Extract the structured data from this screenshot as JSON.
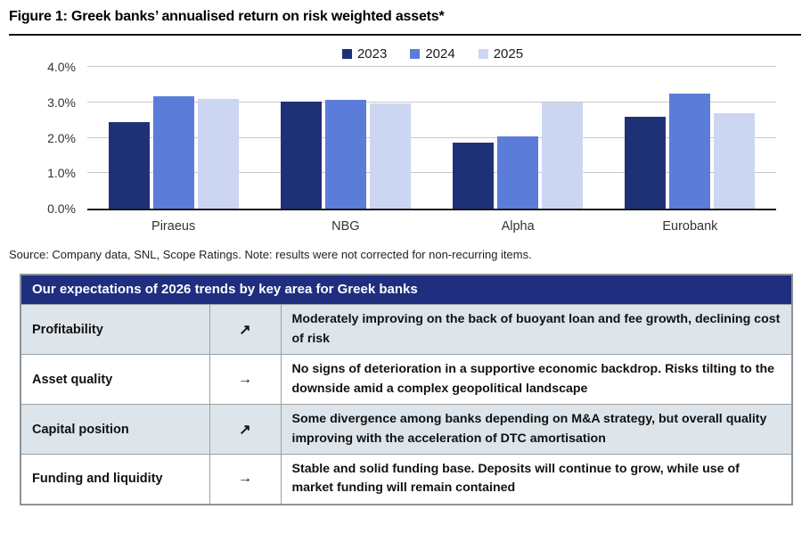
{
  "figure": {
    "title": "Figure 1: Greek banks’ annualised return on risk weighted assets*",
    "source_note": "Source: Company data, SNL, Scope Ratings. Note: results were not corrected for non-recurring items."
  },
  "chart_data": {
    "type": "bar",
    "title": "Greek banks’ annualised return on risk weighted assets",
    "categories": [
      "Piraeus",
      "NBG",
      "Alpha",
      "Eurobank"
    ],
    "series": [
      {
        "name": "2023",
        "color": "#1f3176",
        "values": [
          2.45,
          3.02,
          1.85,
          2.58
        ]
      },
      {
        "name": "2024",
        "color": "#5c7cd9",
        "values": [
          3.18,
          3.08,
          2.05,
          3.25
        ]
      },
      {
        "name": "2025",
        "color": "#ccd6f2",
        "values": [
          3.1,
          2.97,
          3.0,
          2.68
        ]
      }
    ],
    "xlabel": "",
    "ylabel": "",
    "ylim": [
      0,
      4
    ],
    "yticks": [
      "0.0%",
      "1.0%",
      "2.0%",
      "3.0%",
      "4.0%"
    ],
    "grid": true,
    "legend_position": "top-center"
  },
  "table": {
    "header": "Our expectations of 2026 trends by key area for Greek banks",
    "rows": [
      {
        "area": "Profitability",
        "trend": "↗",
        "trend_name": "arrow-up-right-icon",
        "description": "Moderately improving on the back of buoyant loan and fee growth, declining cost of risk"
      },
      {
        "area": "Asset quality",
        "trend": "→",
        "trend_name": "arrow-right-icon",
        "description": "No signs of deterioration in a supportive economic backdrop. Risks tilting to the downside amid a complex geopolitical landscape"
      },
      {
        "area": "Capital position",
        "trend": "↗",
        "trend_name": "arrow-up-right-icon",
        "description": "Some divergence among banks depending on M&A strategy, but overall quality improving with the acceleration of DTC amortisation"
      },
      {
        "area": "Funding and liquidity",
        "trend": "→",
        "trend_name": "arrow-right-icon",
        "description": "Stable and solid funding base. Deposits will continue to grow, while use of market funding will remain contained"
      }
    ]
  },
  "colors": {
    "table_header_bg": "#1f2e7f",
    "table_alt_row_bg": "#dee5ea",
    "gridline": "#c8c8c8",
    "axis": "#1a1a1a"
  }
}
